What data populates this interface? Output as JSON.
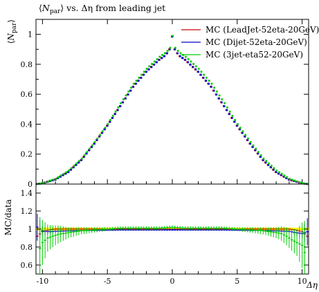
{
  "title": "⟨N_par⟩ vs. Δη from leading jet",
  "title_parts": {
    "open": "⟨",
    "symbol": "N",
    "sub": "par",
    "close": "⟩",
    "rest": " vs. Δη from leading jet"
  },
  "chart_data": [
    {
      "panel": "main",
      "type": "scatter",
      "xlabel": "",
      "ylabel": "⟨N_par⟩",
      "ylabel_parts": {
        "open": "⟨",
        "symbol": "N",
        "sub": "par",
        "close": "⟩"
      },
      "xlim": [
        -10.5,
        10.5
      ],
      "ylim": [
        0,
        1.1
      ],
      "x_ticks": [
        -10,
        -5,
        0,
        5,
        10
      ],
      "y_ticks": [
        0,
        0.2,
        0.4,
        0.6,
        0.8,
        1
      ],
      "y_tick_labels": [
        "0",
        "0.2",
        "0.4",
        "0.6",
        "0.8",
        "1"
      ],
      "grid": false,
      "legend_position": "top-right",
      "series": [
        {
          "name": "MC (LeadJet-52eta-20GeV)",
          "color": "#cc0000",
          "x": [
            -10.5,
            -10,
            -9,
            -8,
            -7,
            -6,
            -5,
            -4,
            -3,
            -2,
            -1,
            -0.5,
            -0.2,
            0,
            0.2,
            0.5,
            1,
            2,
            3,
            4,
            5,
            6,
            7,
            8,
            9,
            10,
            10.5
          ],
          "y": [
            0,
            0.005,
            0.03,
            0.08,
            0.16,
            0.27,
            0.39,
            0.52,
            0.65,
            0.75,
            0.83,
            0.86,
            0.9,
            0.985,
            0.9,
            0.86,
            0.83,
            0.75,
            0.65,
            0.52,
            0.39,
            0.27,
            0.16,
            0.08,
            0.03,
            0.005,
            0
          ]
        },
        {
          "name": "MC (Dijet-52eta-20GeV)",
          "color": "#0000cc",
          "x": [
            -10.5,
            -10,
            -9,
            -8,
            -7,
            -6,
            -5,
            -4,
            -3,
            -2,
            -1,
            -0.5,
            -0.2,
            0,
            0.2,
            0.5,
            1,
            2,
            3,
            4,
            5,
            6,
            7,
            8,
            9,
            10,
            10.5
          ],
          "y": [
            0,
            0.005,
            0.03,
            0.08,
            0.16,
            0.27,
            0.39,
            0.52,
            0.65,
            0.75,
            0.83,
            0.86,
            0.9,
            0.985,
            0.9,
            0.86,
            0.83,
            0.75,
            0.65,
            0.52,
            0.39,
            0.27,
            0.16,
            0.08,
            0.03,
            0.005,
            0
          ]
        },
        {
          "name": "MC (3jet-eta52-20GeV)",
          "color": "#00cc00",
          "x": [
            -10.5,
            -10,
            -9,
            -8,
            -7,
            -6,
            -5,
            -4,
            -3,
            -2,
            -1,
            -0.5,
            -0.2,
            0,
            0.2,
            0.5,
            1,
            2,
            3,
            4,
            5,
            6,
            7,
            8,
            9,
            10,
            10.5
          ],
          "y": [
            0,
            0.005,
            0.035,
            0.09,
            0.17,
            0.28,
            0.4,
            0.54,
            0.67,
            0.77,
            0.85,
            0.88,
            0.91,
            0.99,
            0.91,
            0.88,
            0.85,
            0.77,
            0.67,
            0.54,
            0.4,
            0.28,
            0.17,
            0.09,
            0.035,
            0.005,
            0
          ]
        }
      ]
    },
    {
      "panel": "ratio",
      "type": "line",
      "xlabel": "Δη",
      "ylabel": "MC/data",
      "xlim": [
        -10.5,
        10.5
      ],
      "ylim": [
        0.5,
        1.5
      ],
      "x_ticks": [
        -10,
        -5,
        0,
        5,
        10
      ],
      "x_tick_labels": [
        "-10",
        "-5",
        "0",
        "5",
        "10"
      ],
      "y_ticks": [
        0.6,
        0.8,
        1,
        1.2,
        1.4
      ],
      "y_tick_labels": [
        "0.6",
        "0.8",
        "1",
        "1.2",
        "1.4"
      ],
      "reference_band_color": "#ffff00",
      "series": [
        {
          "name": "MC (LeadJet-52eta-20GeV)",
          "color": "#cc0000",
          "x": [
            -10.4,
            -10,
            -9.5,
            -9,
            -8,
            -6,
            -4,
            -2,
            0,
            2,
            4,
            6,
            8,
            9,
            9.5,
            10,
            10.4
          ],
          "y": [
            0.92,
            0.97,
            0.99,
            1.0,
            1.0,
            1.0,
            1.0,
            1.0,
            1.0,
            1.0,
            1.0,
            1.0,
            1.0,
            1.0,
            0.99,
            0.97,
            0.92
          ]
        },
        {
          "name": "MC (Dijet-52eta-20GeV)",
          "color": "#0000cc",
          "x": [
            -10.4,
            -10,
            -9.5,
            -9,
            -8,
            -6,
            -4,
            -2,
            0,
            2,
            4,
            6,
            8,
            9,
            9.5,
            10,
            10.4
          ],
          "y": [
            1.02,
            0.98,
            0.97,
            0.975,
            0.98,
            0.985,
            0.99,
            0.99,
            0.99,
            0.99,
            0.99,
            0.985,
            0.98,
            0.975,
            0.96,
            0.95,
            0.97
          ],
          "err": [
            0.15,
            0.05,
            0.03,
            0.02,
            0.01,
            0.01,
            0.01,
            0.01,
            0.01,
            0.01,
            0.01,
            0.01,
            0.01,
            0.02,
            0.03,
            0.05,
            0.15
          ]
        },
        {
          "name": "MC (3jet-eta52-20GeV)",
          "color": "#00cc00",
          "x": [
            -10.3,
            -10,
            -9.6,
            -9.2,
            -8.8,
            -8.4,
            -8,
            -7,
            -6,
            -5,
            -4,
            -3,
            -2,
            -1,
            0,
            1,
            2,
            3,
            4,
            5,
            6,
            7,
            8,
            8.4,
            8.8,
            9.2,
            9.6,
            10,
            10.3
          ],
          "y": [
            0.75,
            0.85,
            0.9,
            0.92,
            0.94,
            0.95,
            0.96,
            0.98,
            0.99,
            1.0,
            1.01,
            1.01,
            1.01,
            1.01,
            1.02,
            1.01,
            1.01,
            1.01,
            1.01,
            1.0,
            0.99,
            0.98,
            0.96,
            0.95,
            0.92,
            0.88,
            0.85,
            0.82,
            0.7
          ],
          "err": [
            0.4,
            0.25,
            0.15,
            0.12,
            0.1,
            0.08,
            0.06,
            0.04,
            0.03,
            0.02,
            0.02,
            0.02,
            0.02,
            0.02,
            0.02,
            0.02,
            0.02,
            0.02,
            0.02,
            0.02,
            0.03,
            0.04,
            0.06,
            0.08,
            0.1,
            0.12,
            0.15,
            0.25,
            0.4
          ]
        }
      ]
    }
  ]
}
